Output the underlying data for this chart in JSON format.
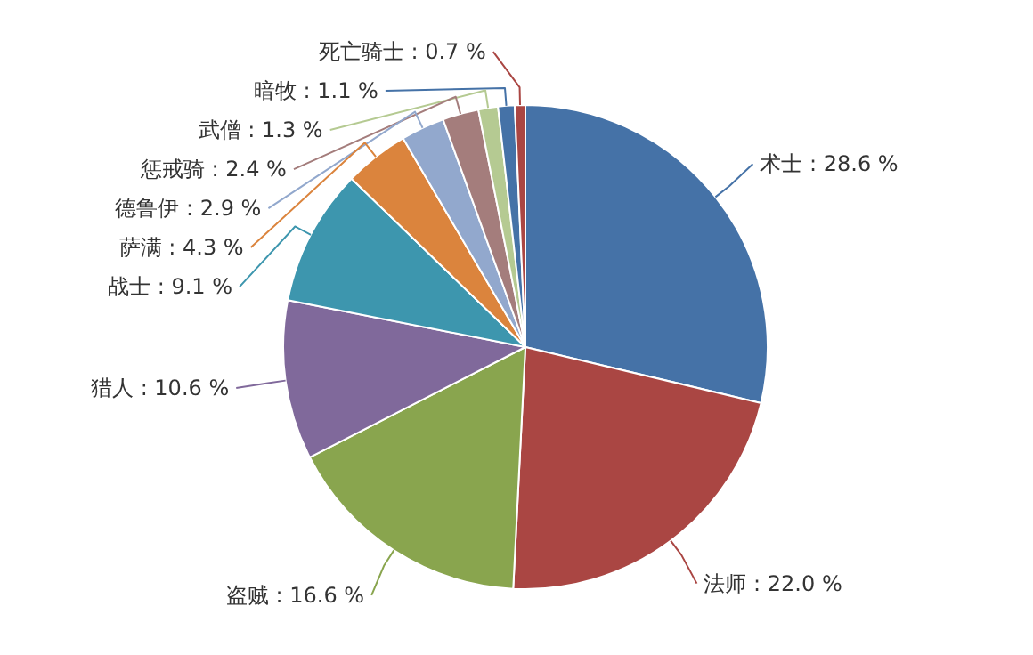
{
  "chart_data": {
    "type": "pie",
    "categories": [
      "术士",
      "法师",
      "盗贼",
      "猎人",
      "战士",
      "萨满",
      "德鲁伊",
      "惩戒骑",
      "武僧",
      "暗牧",
      "死亡骑士"
    ],
    "values": [
      28.6,
      22.0,
      16.6,
      10.6,
      9.1,
      4.3,
      2.9,
      2.4,
      1.3,
      1.1,
      0.7
    ],
    "value_labels": [
      ": 28.6 %",
      ": 22.0 %",
      ": 16.6 %",
      ": 10.6 %",
      ": 9.1 %",
      ": 4.3 %",
      ": 2.9 %",
      ": 2.4 %",
      ": 1.3 %",
      ": 1.1 %",
      ": 0.7 %"
    ],
    "colors": [
      "#4572a7",
      "#aa4643",
      "#89a54e",
      "#80699b",
      "#3d96ae",
      "#db843d",
      "#92a8cd",
      "#a47d7c",
      "#b5ca92",
      "#4572a7",
      "#aa4643"
    ]
  }
}
